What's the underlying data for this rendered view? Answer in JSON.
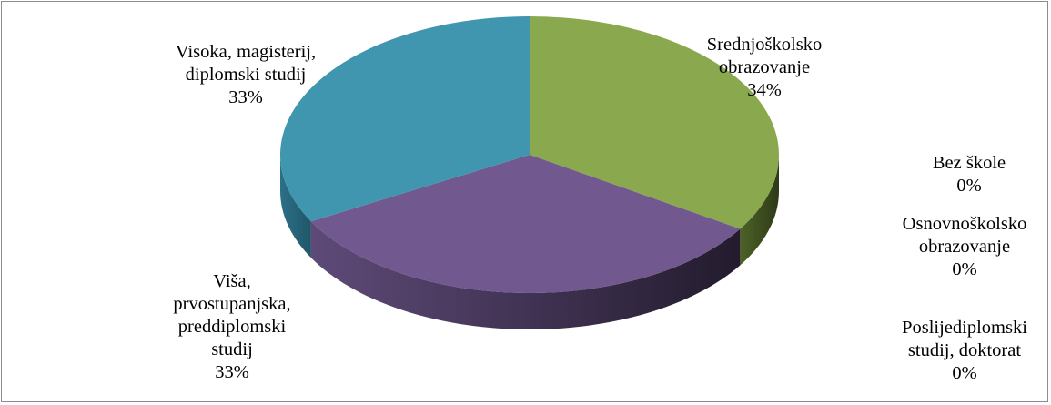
{
  "chart_data": {
    "type": "pie",
    "style": "3d",
    "legend": "none",
    "categories": [
      "Bez škole",
      "Osnovnoškolsko obrazovanje",
      "Srednjoškolsko obrazovanje",
      "Viša, prvostupanjska, preddiplomski studij",
      "Visoka, magisterij, diplomski studij",
      "Poslijediplomski studij, doktorat"
    ],
    "values": [
      0,
      0,
      34,
      33,
      33,
      0
    ],
    "labels": [
      {
        "lines": [
          "Bez škole"
        ],
        "percent": "0%"
      },
      {
        "lines": [
          "Osnovnoškolsko",
          "obrazovanje"
        ],
        "percent": "0%"
      },
      {
        "lines": [
          "Srednjoškolsko",
          "obrazovanje"
        ],
        "percent": "34%"
      },
      {
        "lines": [
          "Viša,",
          "prvostupanjska,",
          "preddiplomski",
          "studij"
        ],
        "percent": "33%"
      },
      {
        "lines": [
          "Visoka, magisterij,",
          "diplomski studij"
        ],
        "percent": "33%"
      },
      {
        "lines": [
          "Poslijediplomski",
          "studij, doktorat"
        ],
        "percent": "0%"
      }
    ],
    "colors": {
      "Srednjoškolsko obrazovanje": "#8aa84e",
      "Viša, prvostupanjska, preddiplomski studij": "#71588f",
      "Visoka, magisterij, diplomski studij": "#4196af"
    }
  }
}
